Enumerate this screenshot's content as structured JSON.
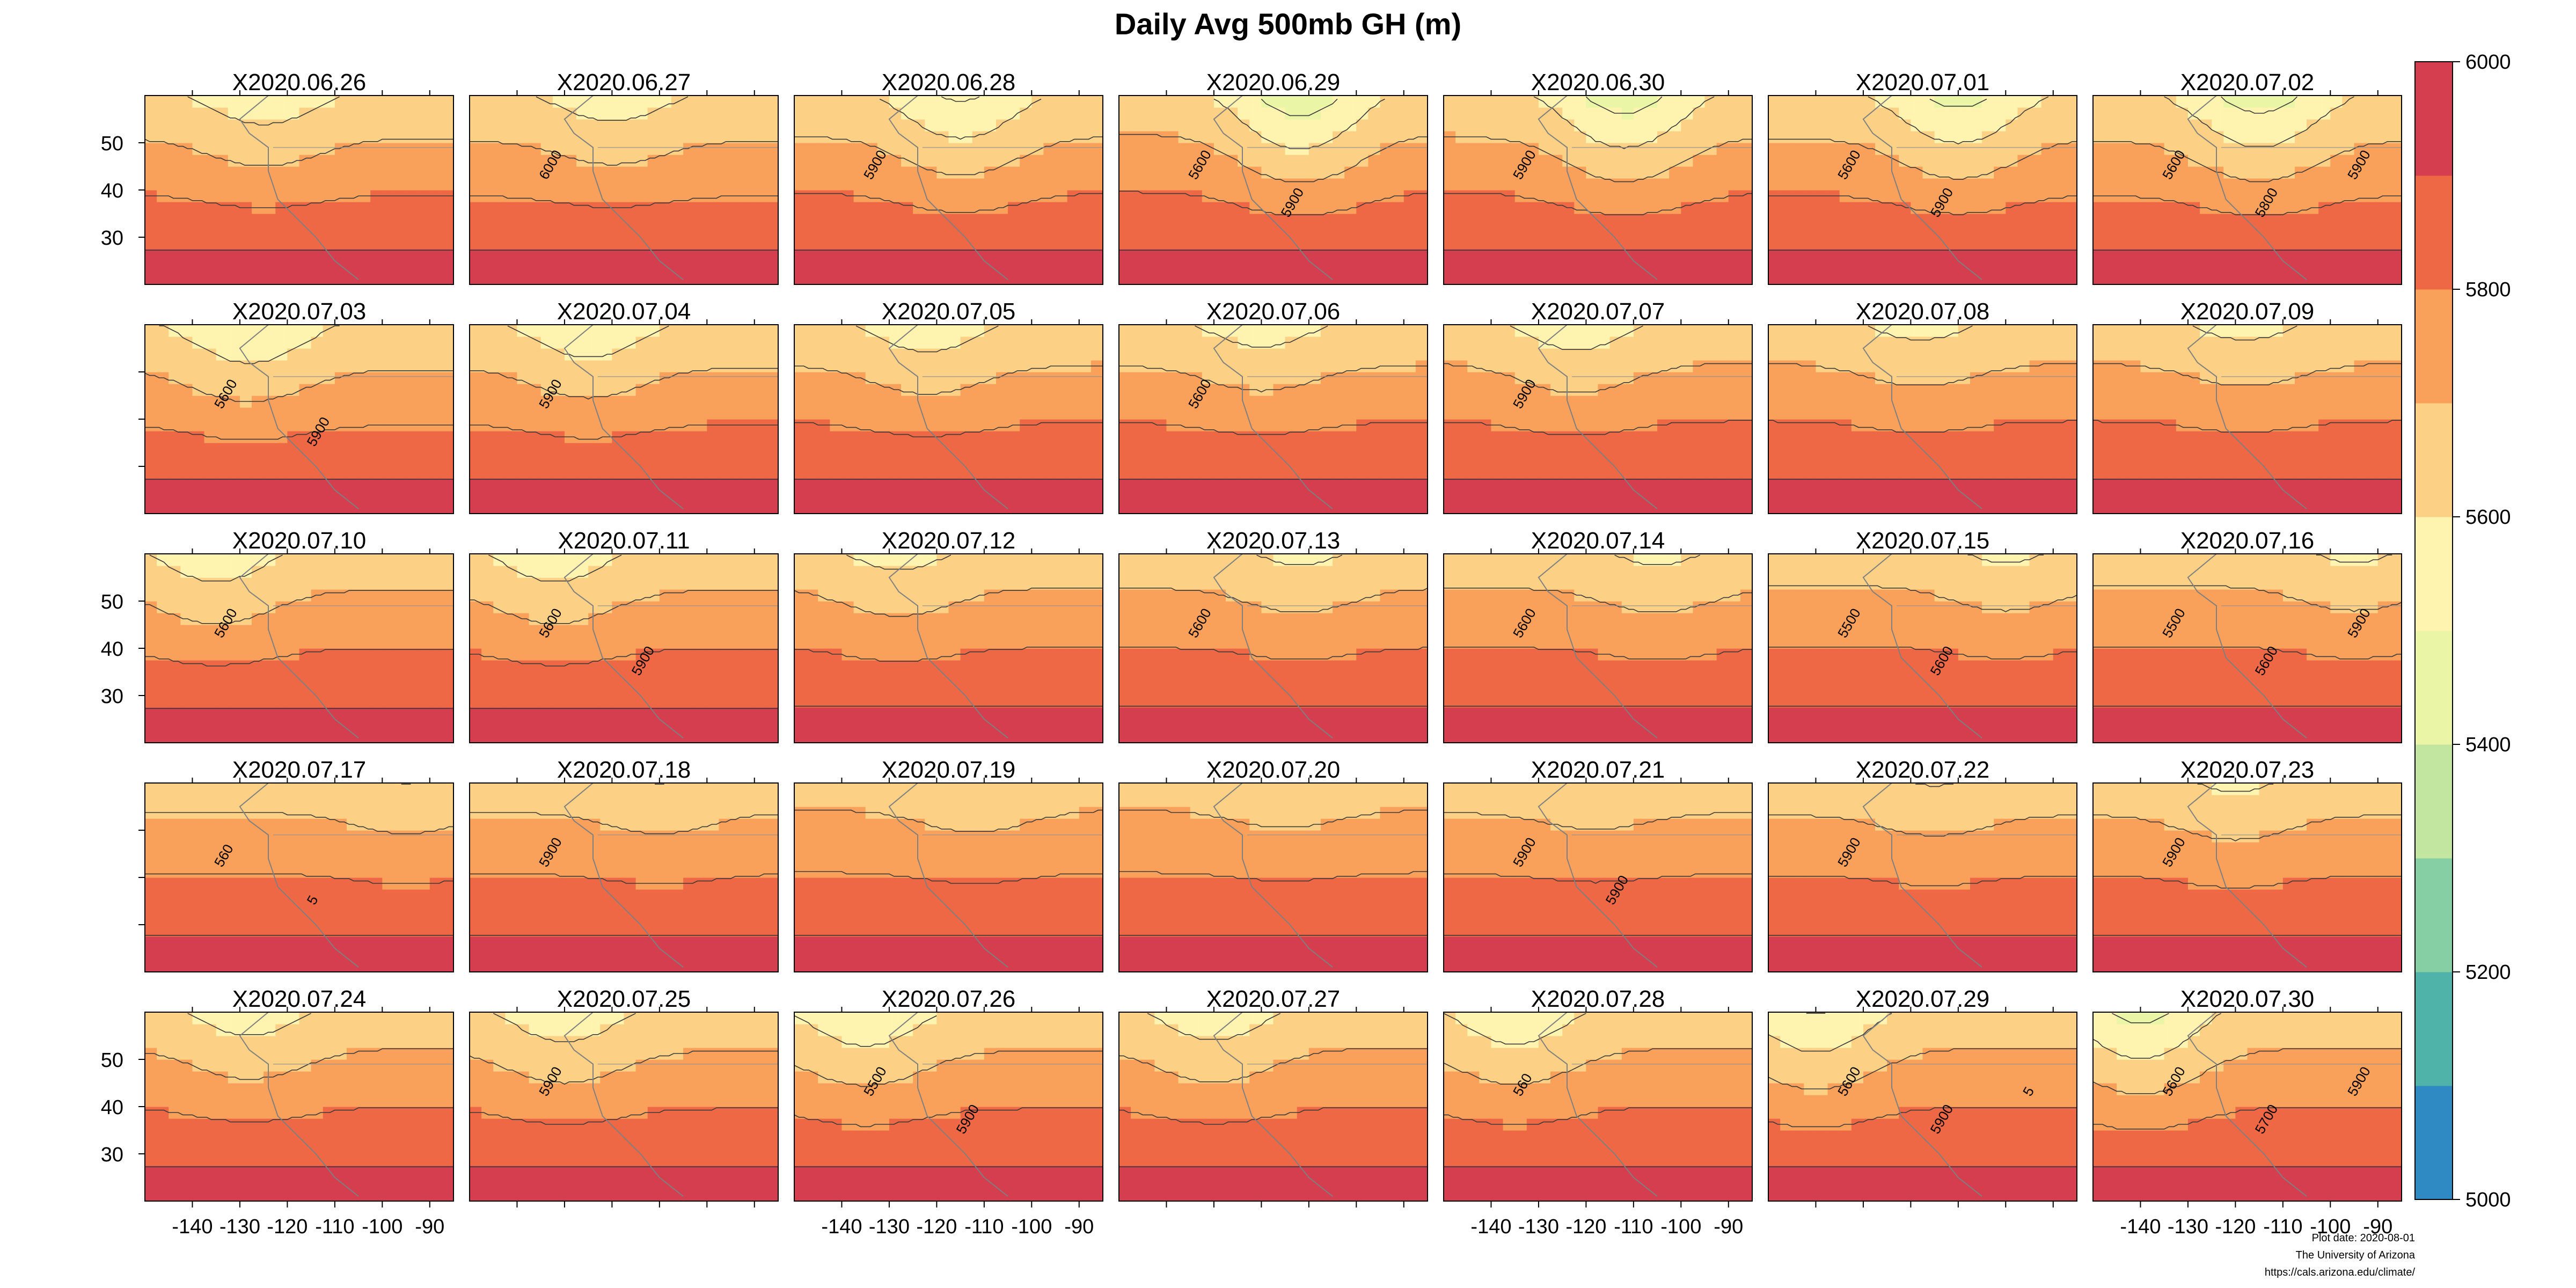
{
  "page": {
    "title": "Daily Avg 500mb GH (m)",
    "footer": {
      "plot_date": "Plot date: 2020-08-01",
      "institution": "The University of Arizona",
      "url": "https://cals.arizona.edu/climate/"
    }
  },
  "chart_data": {
    "type": "heatmap",
    "title": "Daily Avg 500mb GH (m)",
    "layout": {
      "rows": 5,
      "cols": 7
    },
    "x_ticks": [
      -140,
      -130,
      -120,
      -110,
      -100,
      -90
    ],
    "y_ticks": [
      30,
      40,
      50
    ],
    "colorbar": {
      "min": 5000,
      "max": 6000,
      "tick_labels": [
        "5000",
        "5200",
        "5400",
        "5600",
        "5800",
        "6000"
      ],
      "bins": [
        {
          "from": 5000,
          "to": 5100,
          "color": "#2f8ac4"
        },
        {
          "from": 5100,
          "to": 5200,
          "color": "#4fb3aa"
        },
        {
          "from": 5200,
          "to": 5300,
          "color": "#86cfa5"
        },
        {
          "from": 5300,
          "to": 5400,
          "color": "#c2e5a0"
        },
        {
          "from": 5400,
          "to": 5500,
          "color": "#eaf5a6"
        },
        {
          "from": 5500,
          "to": 5600,
          "color": "#fff3b0"
        },
        {
          "from": 5600,
          "to": 5700,
          "color": "#fdd185"
        },
        {
          "from": 5700,
          "to": 5800,
          "color": "#f9a05a"
        },
        {
          "from": 5800,
          "to": 5900,
          "color": "#ee6846"
        },
        {
          "from": 5900,
          "to": 6000,
          "color": "#d53e4f"
        }
      ]
    },
    "panels": [
      {
        "label": "X2020.06.26",
        "trough_center_lon": -125,
        "trough_depth": 0.35,
        "ridge_strength": 0.45,
        "contour_labels": []
      },
      {
        "label": "X2020.06.27",
        "trough_center_lon": -120,
        "trough_depth": 0.3,
        "ridge_strength": 0.4,
        "contour_labels": [
          "6000"
        ]
      },
      {
        "label": "X2020.06.28",
        "trough_center_lon": -115,
        "trough_depth": 0.55,
        "ridge_strength": 0.5,
        "contour_labels": [
          "5900"
        ]
      },
      {
        "label": "X2020.06.29",
        "trough_center_lon": -112,
        "trough_depth": 0.75,
        "ridge_strength": 0.55,
        "contour_labels": [
          "5600",
          "5900"
        ]
      },
      {
        "label": "X2020.06.30",
        "trough_center_lon": -112,
        "trough_depth": 0.7,
        "ridge_strength": 0.5,
        "contour_labels": [
          "5900"
        ]
      },
      {
        "label": "X2020.07.01",
        "trough_center_lon": -110,
        "trough_depth": 0.6,
        "ridge_strength": 0.45,
        "contour_labels": [
          "5600",
          "5900"
        ]
      },
      {
        "label": "X2020.07.02",
        "trough_center_lon": -115,
        "trough_depth": 0.65,
        "ridge_strength": 0.4,
        "contour_labels": [
          "5600",
          "5800",
          "5900"
        ]
      },
      {
        "label": "X2020.07.03",
        "trough_center_lon": -128,
        "trough_depth": 0.45,
        "ridge_strength": 0.4,
        "contour_labels": [
          "5600",
          "5900"
        ]
      },
      {
        "label": "X2020.07.04",
        "trough_center_lon": -125,
        "trough_depth": 0.4,
        "ridge_strength": 0.45,
        "contour_labels": [
          "5900"
        ]
      },
      {
        "label": "X2020.07.05",
        "trough_center_lon": -122,
        "trough_depth": 0.35,
        "ridge_strength": 0.5,
        "contour_labels": []
      },
      {
        "label": "X2020.07.06",
        "trough_center_lon": -120,
        "trough_depth": 0.3,
        "ridge_strength": 0.5,
        "contour_labels": [
          "5600"
        ]
      },
      {
        "label": "X2020.07.07",
        "trough_center_lon": -122,
        "trough_depth": 0.35,
        "ridge_strength": 0.55,
        "contour_labels": [
          "5900"
        ]
      },
      {
        "label": "X2020.07.08",
        "trough_center_lon": -118,
        "trough_depth": 0.25,
        "ridge_strength": 0.55,
        "contour_labels": []
      },
      {
        "label": "X2020.07.09",
        "trough_center_lon": -118,
        "trough_depth": 0.25,
        "ridge_strength": 0.55,
        "contour_labels": []
      },
      {
        "label": "X2020.07.10",
        "trough_center_lon": -135,
        "trough_depth": 0.4,
        "ridge_strength": 0.6,
        "contour_labels": [
          "5600"
        ]
      },
      {
        "label": "X2020.07.11",
        "trough_center_lon": -132,
        "trough_depth": 0.4,
        "ridge_strength": 0.6,
        "contour_labels": [
          "5600",
          "5900"
        ]
      },
      {
        "label": "X2020.07.12",
        "trough_center_lon": -128,
        "trough_depth": 0.3,
        "ridge_strength": 0.65,
        "contour_labels": []
      },
      {
        "label": "X2020.07.13",
        "trough_center_lon": -112,
        "trough_depth": 0.25,
        "ridge_strength": 0.65,
        "contour_labels": [
          "5600"
        ]
      },
      {
        "label": "X2020.07.14",
        "trough_center_lon": -105,
        "trough_depth": 0.25,
        "ridge_strength": 0.65,
        "contour_labels": [
          "5600"
        ]
      },
      {
        "label": "X2020.07.15",
        "trough_center_lon": -100,
        "trough_depth": 0.25,
        "ridge_strength": 0.7,
        "contour_labels": [
          "5500",
          "5600"
        ]
      },
      {
        "label": "X2020.07.16",
        "trough_center_lon": -95,
        "trough_depth": 0.25,
        "ridge_strength": 0.7,
        "contour_labels": [
          "5500",
          "5600",
          "5900"
        ]
      },
      {
        "label": "X2020.07.17",
        "trough_center_lon": -95,
        "trough_depth": 0.2,
        "ridge_strength": 0.75,
        "contour_labels": [
          "560",
          "5"
        ]
      },
      {
        "label": "X2020.07.18",
        "trough_center_lon": -110,
        "trough_depth": 0.2,
        "ridge_strength": 0.75,
        "contour_labels": [
          "5900"
        ]
      },
      {
        "label": "X2020.07.19",
        "trough_center_lon": -112,
        "trough_depth": 0.2,
        "ridge_strength": 0.8,
        "contour_labels": []
      },
      {
        "label": "X2020.07.20",
        "trough_center_lon": -115,
        "trough_depth": 0.15,
        "ridge_strength": 0.8,
        "contour_labels": []
      },
      {
        "label": "X2020.07.21",
        "trough_center_lon": -118,
        "trough_depth": 0.15,
        "ridge_strength": 0.75,
        "contour_labels": [
          "5900",
          "5900"
        ]
      },
      {
        "label": "X2020.07.22",
        "trough_center_lon": -115,
        "trough_depth": 0.2,
        "ridge_strength": 0.7,
        "contour_labels": [
          "5900"
        ]
      },
      {
        "label": "X2020.07.23",
        "trough_center_lon": -120,
        "trough_depth": 0.25,
        "ridge_strength": 0.7,
        "contour_labels": [
          "5900"
        ]
      },
      {
        "label": "X2020.07.24",
        "trough_center_lon": -128,
        "trough_depth": 0.35,
        "ridge_strength": 0.6,
        "contour_labels": []
      },
      {
        "label": "X2020.07.25",
        "trough_center_lon": -130,
        "trough_depth": 0.4,
        "ridge_strength": 0.55,
        "contour_labels": [
          "5900"
        ]
      },
      {
        "label": "X2020.07.26",
        "trough_center_lon": -135,
        "trough_depth": 0.45,
        "ridge_strength": 0.55,
        "contour_labels": [
          "5500",
          "5900"
        ]
      },
      {
        "label": "X2020.07.27",
        "trough_center_lon": -130,
        "trough_depth": 0.4,
        "ridge_strength": 0.6,
        "contour_labels": []
      },
      {
        "label": "X2020.07.28",
        "trough_center_lon": -135,
        "trough_depth": 0.45,
        "ridge_strength": 0.6,
        "contour_labels": [
          "560"
        ]
      },
      {
        "label": "X2020.07.29",
        "trough_center_lon": -140,
        "trough_depth": 0.55,
        "ridge_strength": 0.6,
        "contour_labels": [
          "5600",
          "5900",
          "5"
        ]
      },
      {
        "label": "X2020.07.30",
        "trough_center_lon": -140,
        "trough_depth": 0.65,
        "ridge_strength": 0.6,
        "contour_labels": [
          "5600",
          "5700",
          "5900"
        ]
      }
    ]
  }
}
